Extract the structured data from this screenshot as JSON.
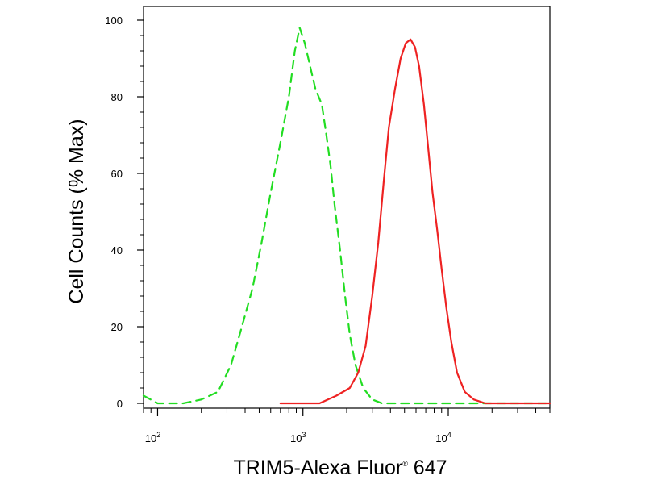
{
  "chart_data": {
    "type": "line",
    "xlabel": "TRIM5-Alexa Fluor® 647",
    "xlabel_main": "TRIM5-Alexa Fluor",
    "xlabel_mark": "®",
    "xlabel_tail": " 647",
    "ylabel": "Cell Counts (% Max)",
    "x_scale": "log",
    "xlim": [
      80,
      50000
    ],
    "ylim": [
      0,
      100
    ],
    "y_ticks": [
      "0",
      "20",
      "40",
      "60",
      "80",
      "100"
    ],
    "x_ticks": [
      {
        "value": 100,
        "base": "10",
        "exp": "2"
      },
      {
        "value": 1000,
        "base": "10",
        "exp": "3"
      },
      {
        "value": 10000,
        "base": "10",
        "exp": "4"
      }
    ],
    "grid": false,
    "legend": "none",
    "series": [
      {
        "color": "#22dd22",
        "dash": "dashed",
        "points": [
          [
            80,
            2
          ],
          [
            100,
            0
          ],
          [
            150,
            0
          ],
          [
            200,
            1
          ],
          [
            260,
            3
          ],
          [
            320,
            10
          ],
          [
            380,
            20
          ],
          [
            450,
            30
          ],
          [
            520,
            42
          ],
          [
            600,
            55
          ],
          [
            700,
            68
          ],
          [
            800,
            80
          ],
          [
            880,
            92
          ],
          [
            950,
            98
          ],
          [
            1030,
            94
          ],
          [
            1120,
            88
          ],
          [
            1220,
            82
          ],
          [
            1350,
            78
          ],
          [
            1450,
            70
          ],
          [
            1550,
            62
          ],
          [
            1650,
            52
          ],
          [
            1800,
            40
          ],
          [
            1950,
            28
          ],
          [
            2100,
            18
          ],
          [
            2300,
            10
          ],
          [
            2600,
            4
          ],
          [
            3000,
            1
          ],
          [
            3500,
            0
          ],
          [
            8000,
            0
          ],
          [
            50000,
            0
          ]
        ]
      },
      {
        "color": "#ee2222",
        "dash": "solid",
        "points": [
          [
            700,
            0
          ],
          [
            1300,
            0
          ],
          [
            1700,
            2
          ],
          [
            2100,
            4
          ],
          [
            2400,
            8
          ],
          [
            2700,
            15
          ],
          [
            3000,
            28
          ],
          [
            3300,
            42
          ],
          [
            3600,
            58
          ],
          [
            3900,
            72
          ],
          [
            4300,
            82
          ],
          [
            4700,
            90
          ],
          [
            5100,
            94
          ],
          [
            5500,
            95
          ],
          [
            5900,
            93
          ],
          [
            6300,
            88
          ],
          [
            6800,
            78
          ],
          [
            7300,
            66
          ],
          [
            7800,
            55
          ],
          [
            8400,
            45
          ],
          [
            9000,
            35
          ],
          [
            9700,
            25
          ],
          [
            10500,
            16
          ],
          [
            11500,
            8
          ],
          [
            13000,
            3
          ],
          [
            15000,
            1
          ],
          [
            18000,
            0
          ],
          [
            50000,
            0
          ]
        ]
      }
    ]
  }
}
